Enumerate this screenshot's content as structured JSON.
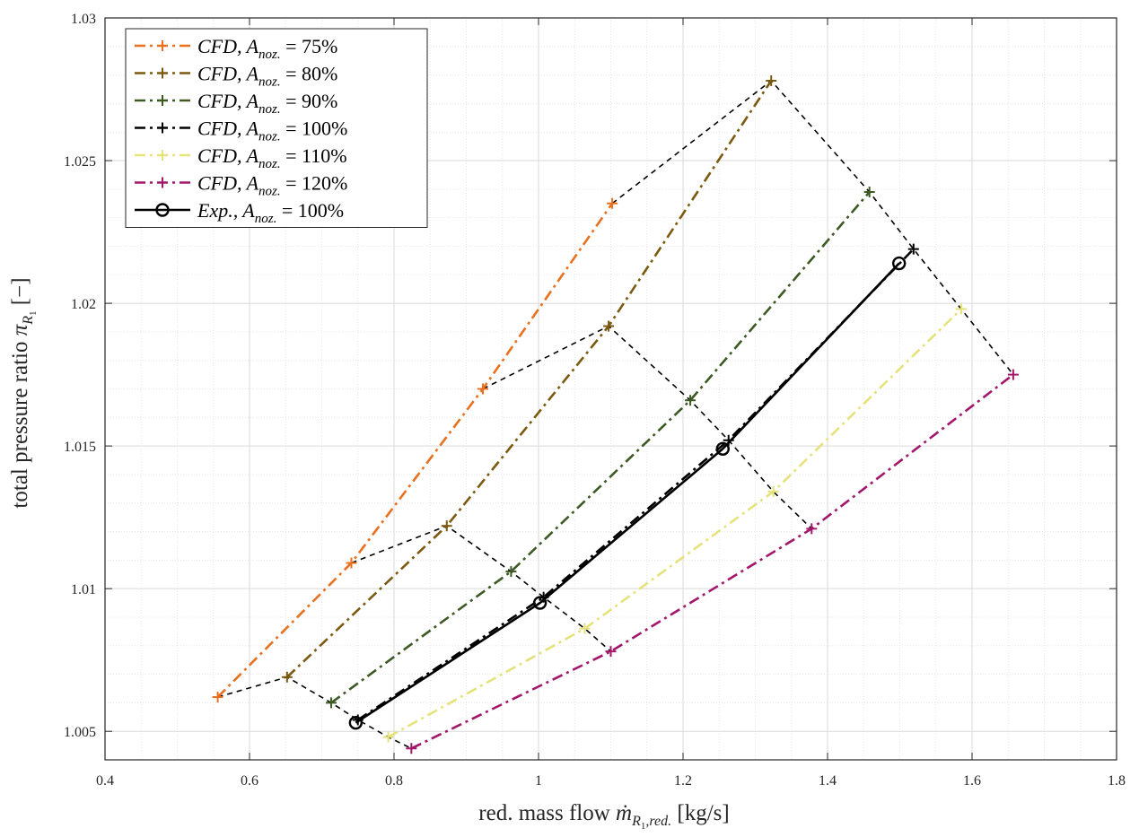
{
  "chart_data": {
    "type": "line",
    "xlabel": "red. mass flow ṁR1,red. [kg/s]",
    "ylabel": "total pressure ratio πR1 [−]",
    "xlim": [
      0.4,
      1.8
    ],
    "ylim": [
      1.004,
      1.03
    ],
    "xticks": [
      "0.4",
      "0.6",
      "0.8",
      "1",
      "1.2",
      "1.4",
      "1.6",
      "1.8"
    ],
    "yticks": [
      "1.005",
      "1.01",
      "1.015",
      "1.02",
      "1.025",
      "1.03"
    ],
    "grid": true,
    "minor_grid": true,
    "legend_position": "top-left",
    "series": [
      {
        "name": "CFD, Anoz. = 75%",
        "color": "#E8701E",
        "style": "dash-dot",
        "marker": "plus",
        "x": [
          0.556,
          0.741,
          0.923,
          1.102
        ],
        "y": [
          1.0062,
          1.0109,
          1.017,
          1.0235
        ]
      },
      {
        "name": "CFD, Anoz. = 80%",
        "color": "#7B5A0F",
        "style": "dash-dot",
        "marker": "plus",
        "x": [
          0.652,
          0.873,
          1.097,
          1.322
        ],
        "y": [
          1.0069,
          1.0122,
          1.0192,
          1.0278
        ]
      },
      {
        "name": "CFD, Anoz. = 90%",
        "color": "#3D5A25",
        "style": "dash-dot",
        "marker": "plus",
        "x": [
          0.713,
          0.962,
          1.21,
          1.458
        ],
        "y": [
          1.006,
          1.0106,
          1.0166,
          1.0239
        ]
      },
      {
        "name": "CFD, Anoz. = 100%",
        "color": "#000000",
        "style": "dash-dot",
        "marker": "plus",
        "x": [
          0.75,
          1.007,
          1.263,
          1.519
        ],
        "y": [
          1.0054,
          1.0097,
          1.0152,
          1.0219
        ]
      },
      {
        "name": "CFD, Anoz. = 110%",
        "color": "#E6E27A",
        "style": "dash-dot",
        "marker": "plus",
        "x": [
          0.792,
          1.064,
          1.325,
          1.585
        ],
        "y": [
          1.0048,
          1.0086,
          1.0134,
          1.0198
        ]
      },
      {
        "name": "CFD, Anoz. = 120%",
        "color": "#A3166A",
        "style": "dash-dot",
        "marker": "plus",
        "x": [
          0.824,
          1.1,
          1.378,
          1.657
        ],
        "y": [
          1.0044,
          1.0078,
          1.0121,
          1.0175
        ]
      },
      {
        "name": "Exp., Anoz. = 100%",
        "color": "#000000",
        "style": "solid",
        "marker": "circle",
        "x": [
          0.747,
          1.002,
          1.255,
          1.499
        ],
        "y": [
          1.0053,
          1.0095,
          1.0149,
          1.0214
        ]
      }
    ],
    "connectors": {
      "color": "#000000",
      "style": "dashed",
      "lines": [
        {
          "x": [
            0.556,
            0.652,
            0.713,
            0.75,
            0.792,
            0.824
          ],
          "y": [
            1.0062,
            1.0069,
            1.006,
            1.0054,
            1.0048,
            1.0044
          ]
        },
        {
          "x": [
            0.741,
            0.873,
            0.962,
            1.007,
            1.064,
            1.1
          ],
          "y": [
            1.0109,
            1.0122,
            1.0106,
            1.0097,
            1.0086,
            1.0078
          ]
        },
        {
          "x": [
            0.923,
            1.097,
            1.21,
            1.263,
            1.325,
            1.378
          ],
          "y": [
            1.017,
            1.0192,
            1.0166,
            1.0152,
            1.0134,
            1.0121
          ]
        },
        {
          "x": [
            1.102,
            1.322,
            1.458,
            1.519,
            1.585,
            1.657
          ],
          "y": [
            1.0235,
            1.0278,
            1.0239,
            1.0219,
            1.0198,
            1.0175
          ]
        }
      ]
    },
    "legend": [
      {
        "prefix": "CFD",
        "sub": "noz.",
        "value": "75%"
      },
      {
        "prefix": "CFD",
        "sub": "noz.",
        "value": "80%"
      },
      {
        "prefix": "CFD",
        "sub": "noz.",
        "value": "90%"
      },
      {
        "prefix": "CFD",
        "sub": "noz.",
        "value": "100%"
      },
      {
        "prefix": "CFD",
        "sub": "noz.",
        "value": "110%"
      },
      {
        "prefix": "CFD",
        "sub": "noz.",
        "value": "120%"
      },
      {
        "prefix": "Exp.",
        "sub": "noz.",
        "value": "100%"
      }
    ]
  }
}
